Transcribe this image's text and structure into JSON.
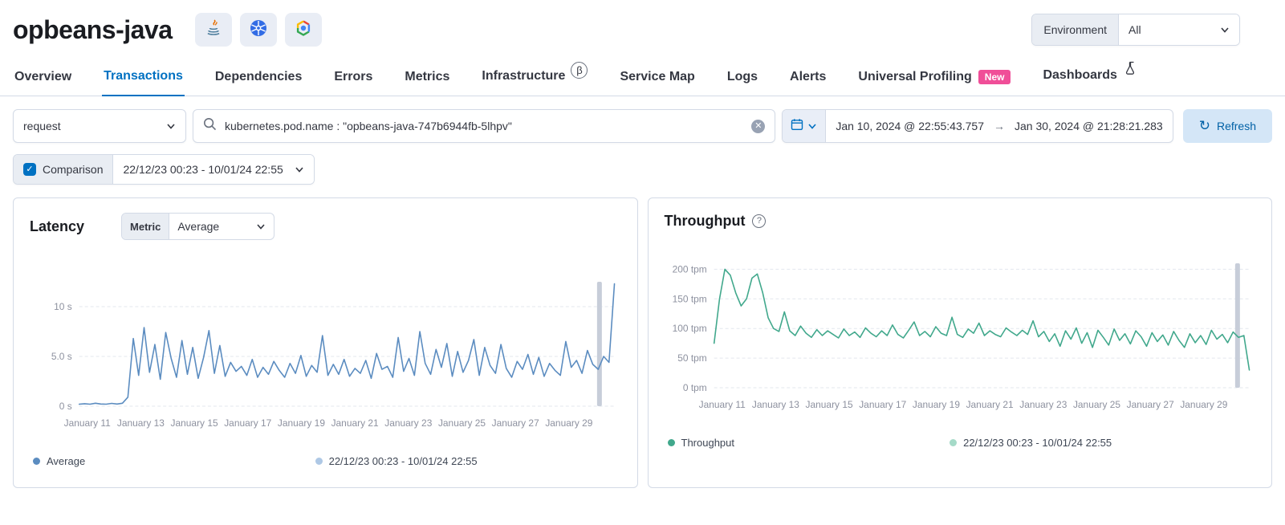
{
  "header": {
    "title": "opbeans-java",
    "environment": {
      "label": "Environment",
      "value": "All"
    }
  },
  "tabs": [
    {
      "label": "Overview",
      "active": false
    },
    {
      "label": "Transactions",
      "active": true
    },
    {
      "label": "Dependencies",
      "active": false
    },
    {
      "label": "Errors",
      "active": false
    },
    {
      "label": "Metrics",
      "active": false
    },
    {
      "label": "Infrastructure",
      "badge": "β",
      "active": false
    },
    {
      "label": "Service Map",
      "active": false
    },
    {
      "label": "Logs",
      "active": false
    },
    {
      "label": "Alerts",
      "active": false
    },
    {
      "label": "Universal Profiling",
      "badge": "New",
      "active": false
    },
    {
      "label": "Dashboards",
      "active": false
    }
  ],
  "filters": {
    "transaction_type": "request",
    "search_query": "kubernetes.pod.name : \"opbeans-java-747b6944fb-5lhpv\"",
    "clear_glyph": "✕",
    "date_start": "Jan 10, 2024 @ 22:55:43.757",
    "date_arrow": "→",
    "date_end": "Jan 30, 2024 @ 21:28:21.283",
    "refresh_label": "Refresh",
    "refresh_glyph": "↻"
  },
  "comparison": {
    "checked": true,
    "check_glyph": "✓",
    "label": "Comparison",
    "value": "22/12/23 00:23 - 10/01/24 22:55"
  },
  "panels": {
    "latency": {
      "title": "Latency",
      "metric_label": "Metric",
      "metric_value": "Average",
      "legend": [
        {
          "label": "Average",
          "color": "#5b8cc0"
        },
        {
          "label": "22/12/23 00:23 - 10/01/24 22:55",
          "color": "#aec8e5"
        }
      ]
    },
    "throughput": {
      "title": "Throughput",
      "help_glyph": "?",
      "legend": [
        {
          "label": "Throughput",
          "color": "#41a88c"
        },
        {
          "label": "22/12/23 00:23 - 10/01/24 22:55",
          "color": "#a5dac8"
        }
      ]
    }
  },
  "chart_data": [
    {
      "type": "line",
      "title": "Latency",
      "ylabel": "seconds",
      "ymax": 12.5,
      "ytick_values": [
        0,
        5,
        10
      ],
      "ytick_labels": [
        "0 s",
        "5.0 s",
        "10 s"
      ],
      "x_ticks": [
        "January 11",
        "January 13",
        "January 15",
        "January 17",
        "January 19",
        "January 21",
        "January 23",
        "January 25",
        "January 27",
        "January 29"
      ],
      "x_positions": [
        0.015,
        0.115,
        0.215,
        0.315,
        0.415,
        0.515,
        0.615,
        0.715,
        0.815,
        0.915
      ],
      "marker_x": 0.972,
      "series": [
        {
          "name": "Average",
          "color": "#5b8cc0",
          "values": [
            0.2,
            0.25,
            0.2,
            0.3,
            0.22,
            0.2,
            0.28,
            0.22,
            0.3,
            0.9,
            6.8,
            3.1,
            7.9,
            3.4,
            6.2,
            2.7,
            7.4,
            4.8,
            2.9,
            6.6,
            3.2,
            5.9,
            2.8,
            4.9,
            7.6,
            3.3,
            6.1,
            3.0,
            4.4,
            3.5,
            4.0,
            3.1,
            4.7,
            2.9,
            3.9,
            3.2,
            4.5,
            3.6,
            2.9,
            4.3,
            3.3,
            5.1,
            3.0,
            4.1,
            3.4,
            7.1,
            3.1,
            4.2,
            3.2,
            4.7,
            3.0,
            3.8,
            3.3,
            4.6,
            2.8,
            5.3,
            3.7,
            4.0,
            2.9,
            6.9,
            3.5,
            4.8,
            3.1,
            7.5,
            4.3,
            3.2,
            5.7,
            3.9,
            6.3,
            3.0,
            5.5,
            3.4,
            4.6,
            6.7,
            3.1,
            5.9,
            4.1,
            3.3,
            6.2,
            3.8,
            2.9,
            4.5,
            3.7,
            5.2,
            3.2,
            4.9,
            3.0,
            4.3,
            3.6,
            3.1,
            6.5,
            3.9,
            4.6,
            3.3,
            5.6,
            4.2,
            3.7,
            5.0,
            4.4,
            12.3
          ]
        }
      ]
    },
    {
      "type": "line",
      "title": "Throughput",
      "ylabel": "tpm",
      "ymax": 210,
      "ytick_values": [
        0,
        50,
        100,
        150,
        200
      ],
      "ytick_labels": [
        "0 tpm",
        "50 tpm",
        "100 tpm",
        "150 tpm",
        "200 tpm"
      ],
      "x_ticks": [
        "January 11",
        "January 13",
        "January 15",
        "January 17",
        "January 19",
        "January 21",
        "January 23",
        "January 25",
        "January 27",
        "January 29"
      ],
      "x_positions": [
        0.015,
        0.115,
        0.215,
        0.315,
        0.415,
        0.515,
        0.615,
        0.715,
        0.815,
        0.915
      ],
      "marker_x": 0.978,
      "series": [
        {
          "name": "Throughput",
          "color": "#41a88c",
          "values": [
            75,
            150,
            200,
            190,
            160,
            138,
            150,
            185,
            192,
            160,
            118,
            100,
            95,
            128,
            96,
            88,
            104,
            92,
            85,
            98,
            88,
            96,
            90,
            84,
            99,
            88,
            94,
            85,
            101,
            92,
            86,
            96,
            88,
            106,
            90,
            84,
            97,
            111,
            88,
            95,
            86,
            103,
            92,
            88,
            119,
            90,
            85,
            99,
            92,
            109,
            88,
            96,
            90,
            86,
            101,
            94,
            88,
            97,
            90,
            113,
            86,
            95,
            78,
            91,
            70,
            96,
            82,
            101,
            75,
            93,
            68,
            97,
            85,
            72,
            99,
            80,
            91,
            74,
            96,
            86,
            70,
            93,
            78,
            89,
            72,
            95,
            80,
            68,
            91,
            76,
            88,
            73,
            97,
            82,
            90,
            76,
            94,
            85,
            88,
            30
          ]
        }
      ]
    }
  ]
}
